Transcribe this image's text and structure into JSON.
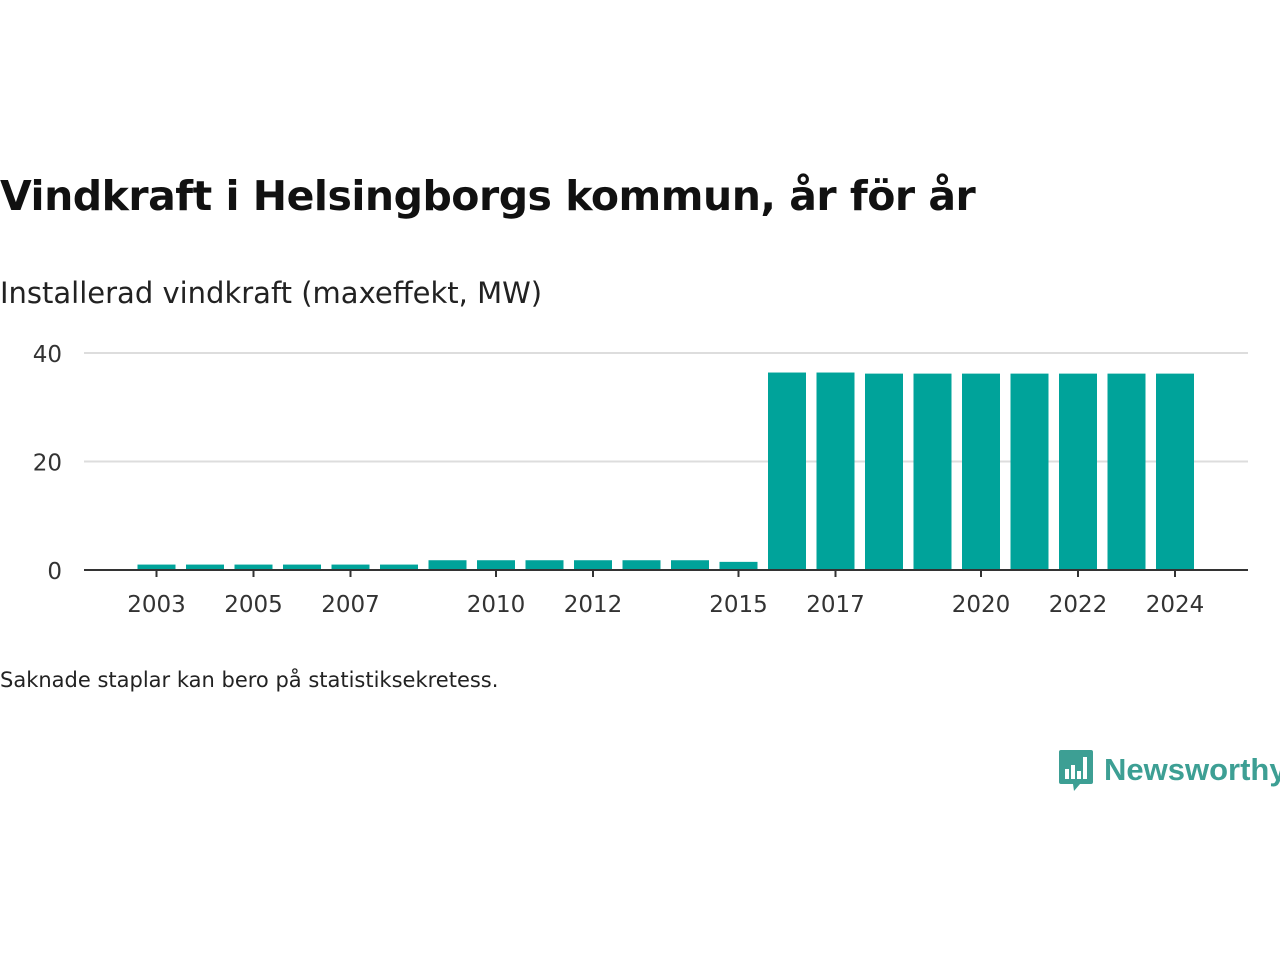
{
  "title": "Vindkraft i Helsingborgs kommun, år för år",
  "subtitle": "Installerad vindkraft (maxeffekt, MW)",
  "footnote": "Saknade staplar kan bero på statistiksekretess.",
  "brand": {
    "name": "Newsworthy",
    "icon": "bar-chart-speech-bubble-icon",
    "color": "#3d9f94"
  },
  "chart_data": {
    "type": "bar",
    "color": "#00a39a",
    "categories": [
      "2003",
      "2004",
      "2005",
      "2006",
      "2007",
      "2008",
      "2009",
      "2010",
      "2011",
      "2012",
      "2013",
      "2014",
      "2015",
      "2016",
      "2017",
      "2018",
      "2019",
      "2020",
      "2021",
      "2022",
      "2023",
      "2024"
    ],
    "values": [
      1.0,
      1.0,
      1.0,
      1.0,
      1.0,
      1.0,
      1.8,
      1.8,
      1.8,
      1.8,
      1.8,
      1.8,
      1.5,
      36.4,
      36.4,
      36.2,
      36.2,
      36.2,
      36.2,
      36.2,
      36.2,
      36.2
    ],
    "x_tick_labels": [
      "2003",
      "2005",
      "2007",
      "2010",
      "2012",
      "2015",
      "2017",
      "2020",
      "2022",
      "2024"
    ],
    "y_ticks": [
      0,
      20,
      40
    ],
    "ylim": [
      0,
      40
    ],
    "grid": true,
    "legend": "none"
  }
}
